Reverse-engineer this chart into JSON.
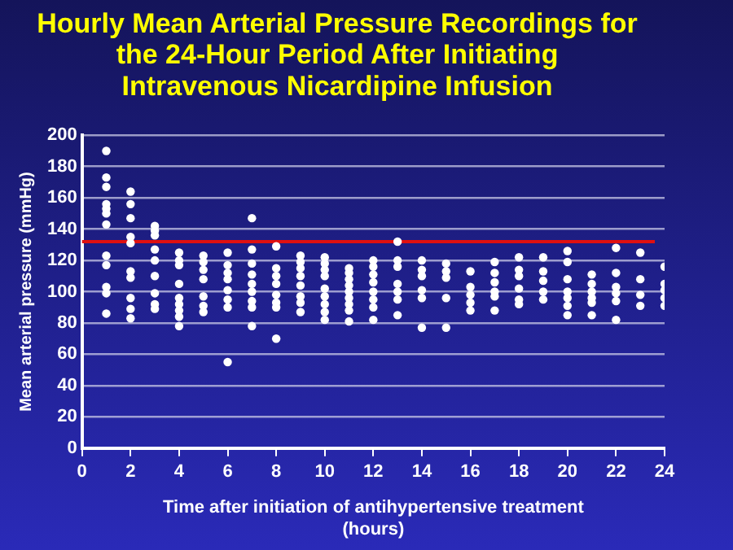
{
  "chart_data": {
    "type": "scatter",
    "title": "Hourly Mean Arterial Pressure Recordings for\nthe 24-Hour Period After Initiating\nIntravenous Nicardipine Infusion",
    "xlabel": "Time after initiation of antihypertensive treatment\n(hours)",
    "ylabel": "Mean arterial pressure (mmHg)",
    "xlim": [
      0,
      24
    ],
    "xticks": [
      0,
      2,
      4,
      6,
      8,
      10,
      12,
      14,
      16,
      18,
      20,
      22,
      24
    ],
    "ylim": [
      0,
      200
    ],
    "yticks": [
      0,
      20,
      40,
      60,
      80,
      100,
      120,
      140,
      160,
      180,
      200
    ],
    "grid": "y",
    "legend": false,
    "marker": "circle",
    "ref_lines": [
      {
        "axis": "y",
        "value": 132,
        "color": "#e01010"
      }
    ],
    "series": [
      {
        "color": "#ffffff",
        "x": [
          1,
          1,
          1,
          1,
          1,
          1,
          1,
          1,
          1,
          1,
          1,
          1
        ],
        "values": [
          190,
          173,
          167,
          156,
          153,
          150,
          143,
          123,
          117,
          103,
          99,
          86
        ]
      },
      {
        "color": "#ffffff",
        "x": [
          2,
          2,
          2,
          2,
          2,
          2,
          2,
          2,
          2,
          2
        ],
        "values": [
          164,
          156,
          147,
          135,
          131,
          113,
          109,
          96,
          89,
          83
        ]
      },
      {
        "color": "#ffffff",
        "x": [
          3,
          3,
          3,
          3,
          3,
          3,
          3,
          3,
          3
        ],
        "values": [
          142,
          139,
          136,
          127,
          120,
          110,
          99,
          92,
          89
        ]
      },
      {
        "color": "#ffffff",
        "x": [
          4,
          4,
          4,
          4,
          4,
          4,
          4,
          4,
          4
        ],
        "values": [
          125,
          120,
          117,
          105,
          96,
          92,
          88,
          84,
          78
        ]
      },
      {
        "color": "#ffffff",
        "x": [
          5,
          5,
          5,
          5,
          5,
          5,
          5
        ],
        "values": [
          123,
          119,
          114,
          108,
          97,
          91,
          87
        ]
      },
      {
        "color": "#ffffff",
        "x": [
          6,
          6,
          6,
          6,
          6,
          6,
          6,
          6
        ],
        "values": [
          125,
          117,
          112,
          108,
          101,
          95,
          90,
          55
        ]
      },
      {
        "color": "#ffffff",
        "x": [
          7,
          7,
          7,
          7,
          7,
          7,
          7,
          7,
          7
        ],
        "values": [
          147,
          127,
          118,
          111,
          105,
          100,
          94,
          90,
          78
        ]
      },
      {
        "color": "#ffffff",
        "x": [
          8,
          8,
          8,
          8,
          8,
          8,
          8,
          8
        ],
        "values": [
          129,
          115,
          110,
          105,
          98,
          93,
          90,
          70
        ]
      },
      {
        "color": "#ffffff",
        "x": [
          9,
          9,
          9,
          9,
          9,
          9,
          9,
          9
        ],
        "values": [
          123,
          119,
          115,
          110,
          104,
          97,
          93,
          87
        ]
      },
      {
        "color": "#ffffff",
        "x": [
          10,
          10,
          10,
          10,
          10,
          10,
          10,
          10,
          10
        ],
        "values": [
          122,
          118,
          114,
          110,
          102,
          97,
          92,
          87,
          82
        ]
      },
      {
        "color": "#ffffff",
        "x": [
          11,
          11,
          11,
          11,
          11,
          11,
          11,
          11,
          11
        ],
        "values": [
          115,
          112,
          108,
          104,
          100,
          96,
          92,
          88,
          81
        ]
      },
      {
        "color": "#ffffff",
        "x": [
          12,
          12,
          12,
          12,
          12,
          12,
          12,
          12
        ],
        "values": [
          120,
          116,
          111,
          106,
          100,
          95,
          90,
          82
        ]
      },
      {
        "color": "#ffffff",
        "x": [
          13,
          13,
          13,
          13,
          13,
          13,
          13
        ],
        "values": [
          132,
          120,
          116,
          105,
          100,
          95,
          85
        ]
      },
      {
        "color": "#ffffff",
        "x": [
          14,
          14,
          14,
          14,
          14,
          14
        ],
        "values": [
          120,
          114,
          110,
          101,
          96,
          77
        ]
      },
      {
        "color": "#ffffff",
        "x": [
          15,
          15,
          15,
          15,
          15
        ],
        "values": [
          118,
          113,
          109,
          96,
          77
        ]
      },
      {
        "color": "#ffffff",
        "x": [
          16,
          16,
          16,
          16,
          16
        ],
        "values": [
          113,
          103,
          98,
          93,
          88
        ]
      },
      {
        "color": "#ffffff",
        "x": [
          17,
          17,
          17,
          17,
          17,
          17
        ],
        "values": [
          119,
          112,
          106,
          100,
          97,
          88
        ]
      },
      {
        "color": "#ffffff",
        "x": [
          18,
          18,
          18,
          18,
          18,
          18
        ],
        "values": [
          122,
          114,
          110,
          102,
          95,
          92
        ]
      },
      {
        "color": "#ffffff",
        "x": [
          19,
          19,
          19,
          19,
          19
        ],
        "values": [
          122,
          113,
          107,
          100,
          95
        ]
      },
      {
        "color": "#ffffff",
        "x": [
          20,
          20,
          20,
          20,
          20,
          20,
          20
        ],
        "values": [
          126,
          119,
          108,
          100,
          96,
          91,
          85
        ]
      },
      {
        "color": "#ffffff",
        "x": [
          21,
          21,
          21,
          21,
          21,
          21
        ],
        "values": [
          111,
          105,
          100,
          96,
          93,
          85
        ]
      },
      {
        "color": "#ffffff",
        "x": [
          22,
          22,
          22,
          22,
          22,
          22
        ],
        "values": [
          128,
          112,
          103,
          99,
          94,
          82
        ]
      },
      {
        "color": "#ffffff",
        "x": [
          23,
          23,
          23,
          23
        ],
        "values": [
          125,
          108,
          98,
          91
        ]
      },
      {
        "color": "#ffffff",
        "x": [
          24,
          24,
          24,
          24,
          24
        ],
        "values": [
          116,
          105,
          101,
          96,
          91
        ]
      }
    ]
  }
}
